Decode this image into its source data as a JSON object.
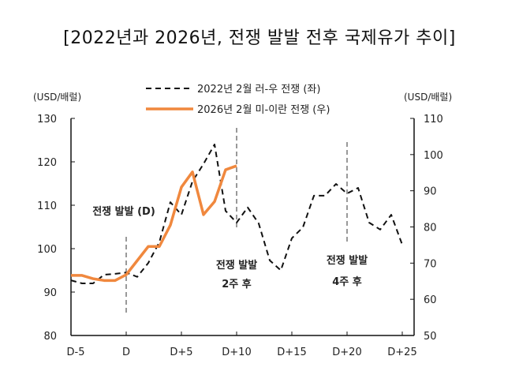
{
  "chart_data": {
    "type": "line",
    "title": "[2022년과 2026년, 전쟁 발발 전후 국제유가 추이]",
    "left_unit": "(USD/배럴)",
    "right_unit": "(USD/배럴)",
    "x_ticks": [
      {
        "day": -5,
        "label": "D-5"
      },
      {
        "day": 0,
        "label": "D"
      },
      {
        "day": 5,
        "label": "D+5"
      },
      {
        "day": 10,
        "label": "D+10"
      },
      {
        "day": 15,
        "label": "D+15"
      },
      {
        "day": 20,
        "label": "D+20"
      },
      {
        "day": 25,
        "label": "D+25"
      }
    ],
    "xlim": [
      -5,
      26
    ],
    "left_ylim": [
      80,
      130
    ],
    "left_ticks": [
      80,
      90,
      100,
      110,
      120,
      130
    ],
    "right_ylim": [
      50,
      110
    ],
    "right_ticks": [
      50,
      60,
      70,
      80,
      90,
      100,
      110
    ],
    "grid": false,
    "legend_placement": "top-center",
    "series": [
      {
        "name": "2022년 2월 러-우 전쟁 (좌)",
        "axis": "left",
        "style": "dashed",
        "color": "#111111",
        "x": [
          -5,
          -4,
          -3,
          -2,
          -1,
          0,
          1,
          2,
          3,
          4,
          5,
          6,
          7,
          8,
          9,
          10,
          11,
          12,
          13,
          14,
          15,
          16,
          17,
          18,
          19,
          20,
          21,
          22,
          23,
          24,
          25
        ],
        "values": [
          92.7,
          92.0,
          92.0,
          94.0,
          94.2,
          94.5,
          93.5,
          96.7,
          101.5,
          110.7,
          107.8,
          115.5,
          119.5,
          124.0,
          108.7,
          106.0,
          109.5,
          105.8,
          97.3,
          95.0,
          102.4,
          104.9,
          112.2,
          112.2,
          114.9,
          112.7,
          114.0,
          106.0,
          104.4,
          107.8,
          100.9
        ]
      },
      {
        "name": "2026년 2월 미-이란 전쟁 (우)",
        "axis": "right",
        "style": "solid",
        "color": "#F0883E",
        "x": [
          -5,
          -4,
          -3,
          -2,
          -1,
          0,
          1,
          2,
          3,
          4,
          5,
          6,
          7,
          8,
          9,
          10
        ],
        "values": [
          66.6,
          66.6,
          65.7,
          65.2,
          65.2,
          66.8,
          70.7,
          74.6,
          74.6,
          80.5,
          91.0,
          95.2,
          83.4,
          87.0,
          95.8,
          96.9
        ]
      }
    ],
    "annotations": [
      {
        "day": 0,
        "lines": [
          "전쟁 발발 (D)"
        ]
      },
      {
        "day": 10,
        "lines": [
          "전쟁 발발",
          "2주 후"
        ]
      },
      {
        "day": 20,
        "lines": [
          "전쟁 발발",
          "4주 후"
        ]
      }
    ],
    "marker_line_color": "#999999"
  }
}
